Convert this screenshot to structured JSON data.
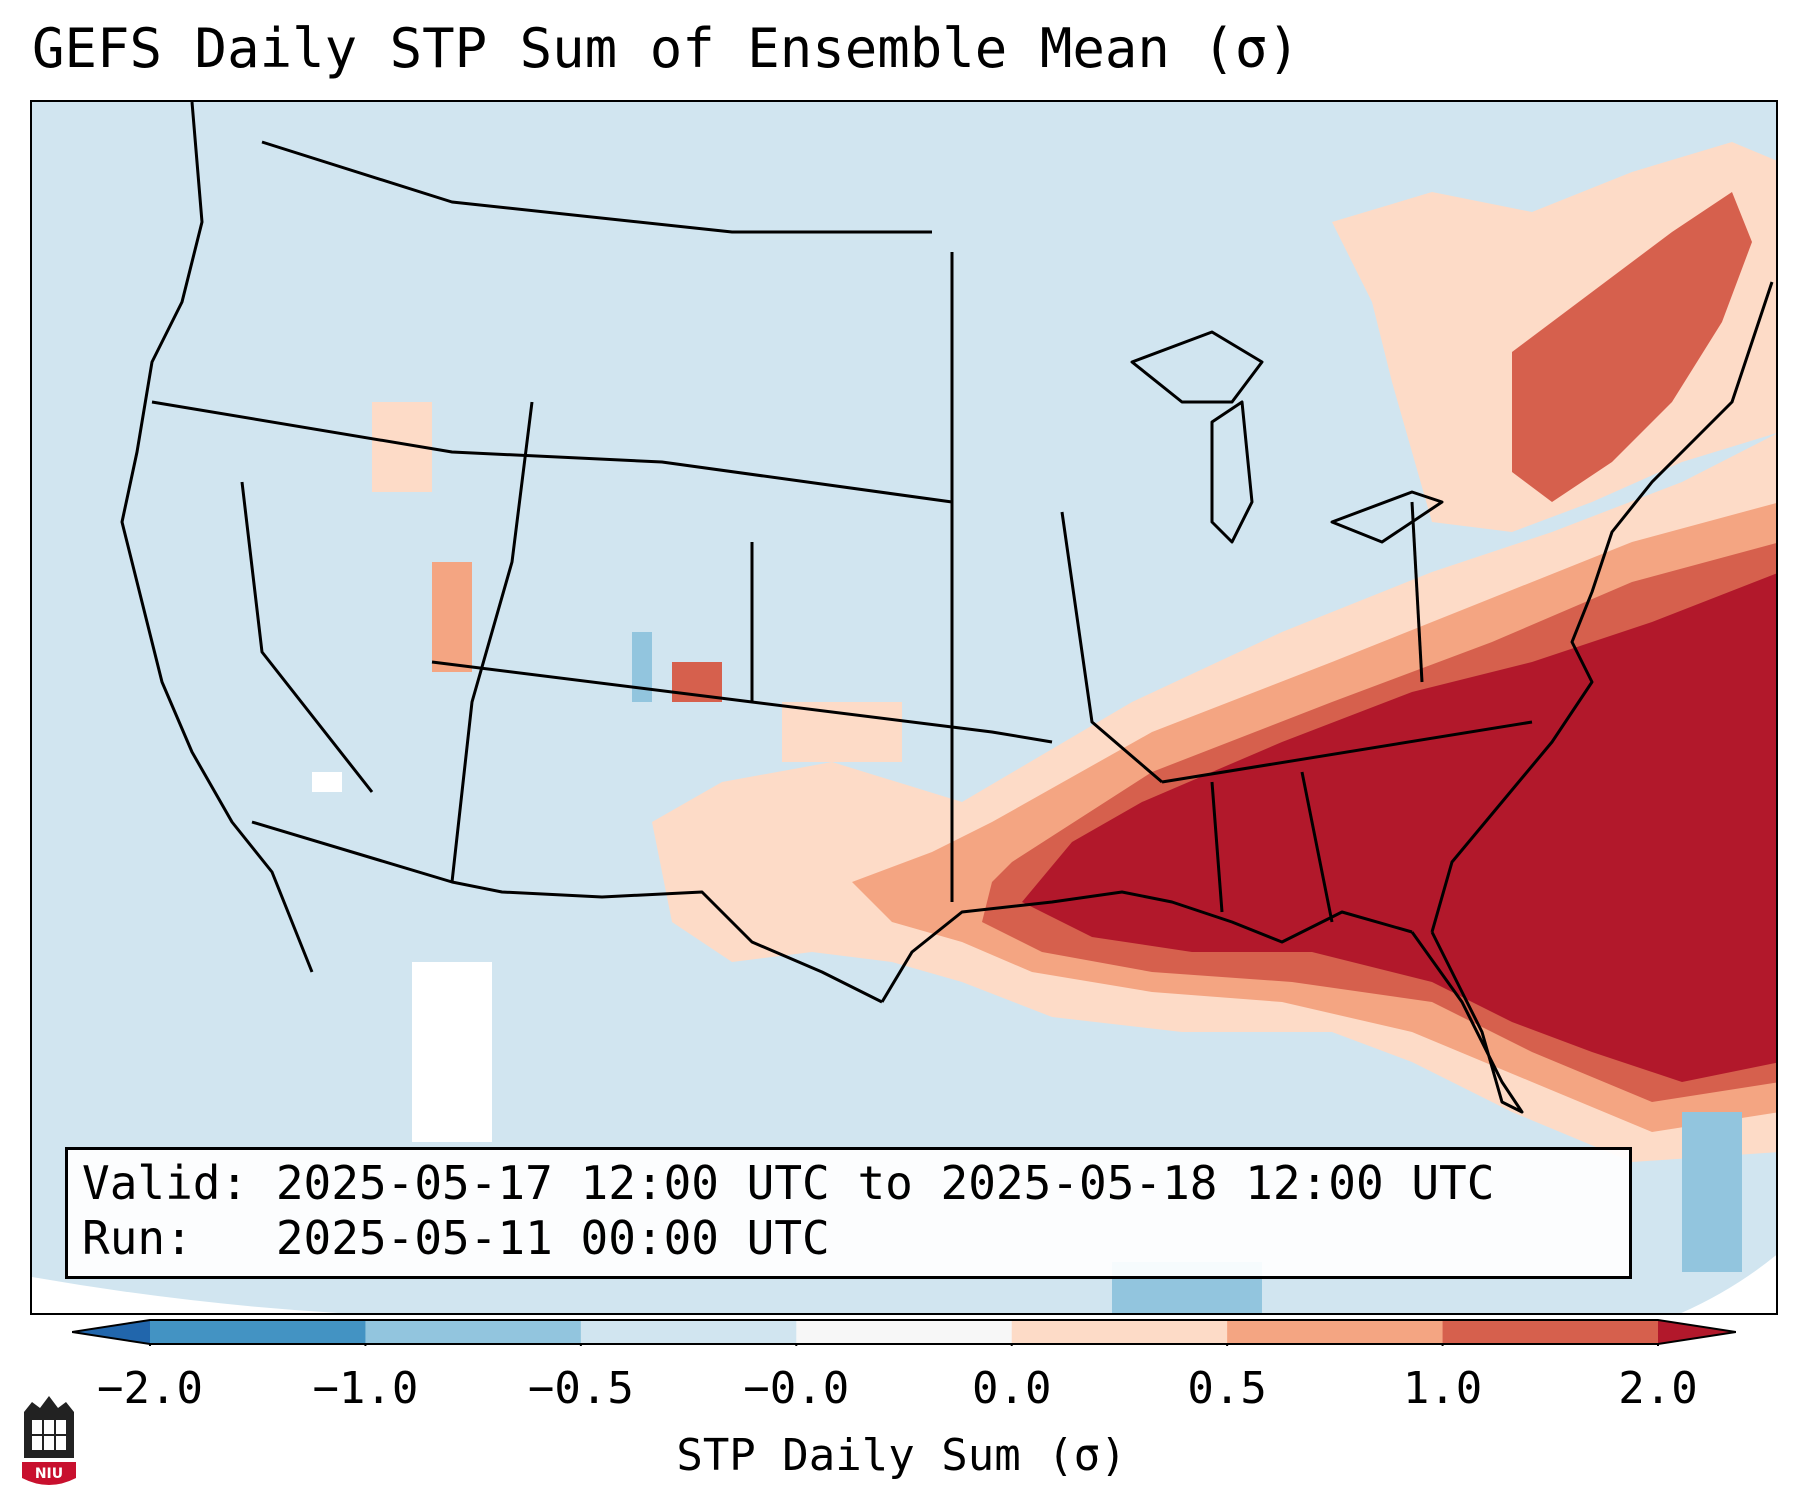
{
  "title": "GEFS Daily STP Sum of Ensemble Mean (σ)",
  "info": {
    "valid_line": "Valid: 2025-05-17 12:00 UTC to 2025-05-18 12:00 UTC",
    "run_line": "Run:   2025-05-11 00:00 UTC"
  },
  "colorbar": {
    "label": "STP Daily Sum (σ)",
    "tick_labels": [
      "−2.0",
      "−1.0",
      "−0.5",
      "−0.0",
      "0.0",
      "0.5",
      "1.0",
      "2.0"
    ],
    "colors": [
      "#2166ac",
      "#4393c3",
      "#92c5de",
      "#d1e5f0",
      "#f7f7f7",
      "#fddbc7",
      "#f4a582",
      "#d6604d",
      "#b2182b"
    ]
  },
  "map": {
    "ocean_color": "#d1e5f0",
    "land_color": "#d1e5f0",
    "border_color": "#000000",
    "high_color": "#b2182b"
  },
  "logo_text": "NIU"
}
